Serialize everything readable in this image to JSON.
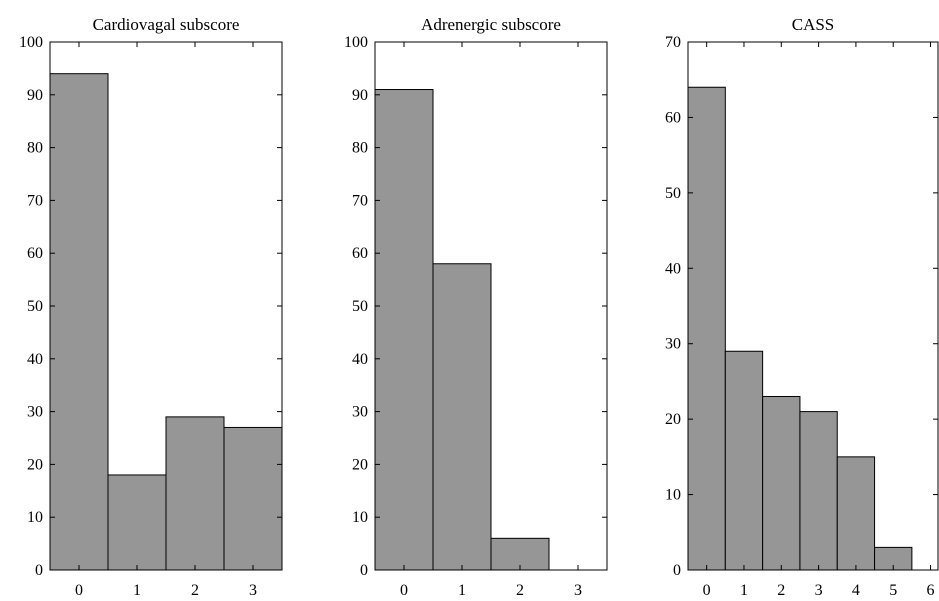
{
  "chart_data": [
    {
      "type": "bar",
      "title": "Cardiovagal subscore",
      "xlabel": "",
      "ylabel": "",
      "categories": [
        "0",
        "1",
        "2",
        "3"
      ],
      "values": [
        94,
        18,
        29,
        27
      ],
      "ylim": [
        0,
        100
      ],
      "xlim": [
        -0.5,
        3.5
      ],
      "yticks": [
        0,
        10,
        20,
        30,
        40,
        50,
        60,
        70,
        80,
        90,
        100
      ],
      "xticks": [
        0,
        1,
        2,
        3
      ],
      "grid": false,
      "bar_color": "#969696"
    },
    {
      "type": "bar",
      "title": "Adrenergic subscore",
      "xlabel": "",
      "ylabel": "",
      "categories": [
        "0",
        "1",
        "2",
        "3"
      ],
      "values": [
        91,
        58,
        6,
        0
      ],
      "ylim": [
        0,
        100
      ],
      "xlim": [
        -0.5,
        3.5
      ],
      "yticks": [
        0,
        10,
        20,
        30,
        40,
        50,
        60,
        70,
        80,
        90,
        100
      ],
      "xticks": [
        0,
        1,
        2,
        3
      ],
      "grid": false,
      "bar_color": "#969696"
    },
    {
      "type": "bar",
      "title": "CASS",
      "xlabel": "",
      "ylabel": "",
      "categories": [
        "0",
        "1",
        "2",
        "3",
        "4",
        "5"
      ],
      "values": [
        64,
        29,
        23,
        21,
        15,
        3
      ],
      "ylim": [
        0,
        70
      ],
      "xlim": [
        -0.5,
        6.2
      ],
      "yticks": [
        0,
        10,
        20,
        30,
        40,
        50,
        60,
        70
      ],
      "xticks": [
        0,
        1,
        2,
        3,
        4,
        5,
        6
      ],
      "grid": false,
      "bar_color": "#969696"
    }
  ]
}
